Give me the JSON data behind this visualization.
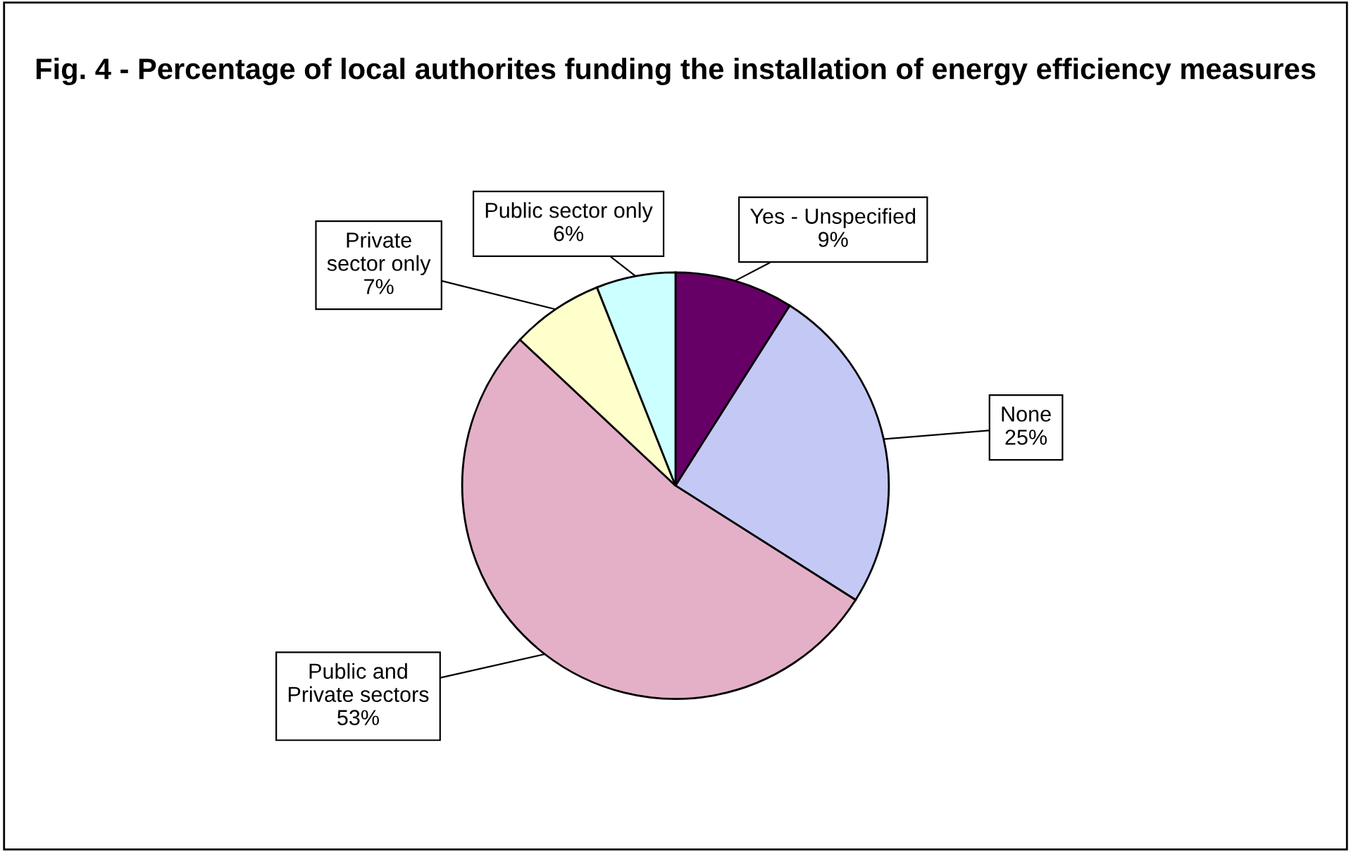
{
  "chart_data": {
    "type": "pie",
    "title": "Fig. 4 - Percentage of local authorites funding the installation of energy efficiency measures",
    "categories": [
      "Yes - Unspecified",
      "None",
      "Public and Private sectors",
      "Private sector only",
      "Public sector only"
    ],
    "values": [
      9,
      25,
      53,
      7,
      6
    ],
    "value_labels": [
      "9%",
      "25%",
      "53%",
      "7%",
      "6%"
    ],
    "colors": [
      "#660066",
      "#c4c8f4",
      "#e4b0c8",
      "#ffffcc",
      "#ccffff"
    ],
    "legend": false
  }
}
